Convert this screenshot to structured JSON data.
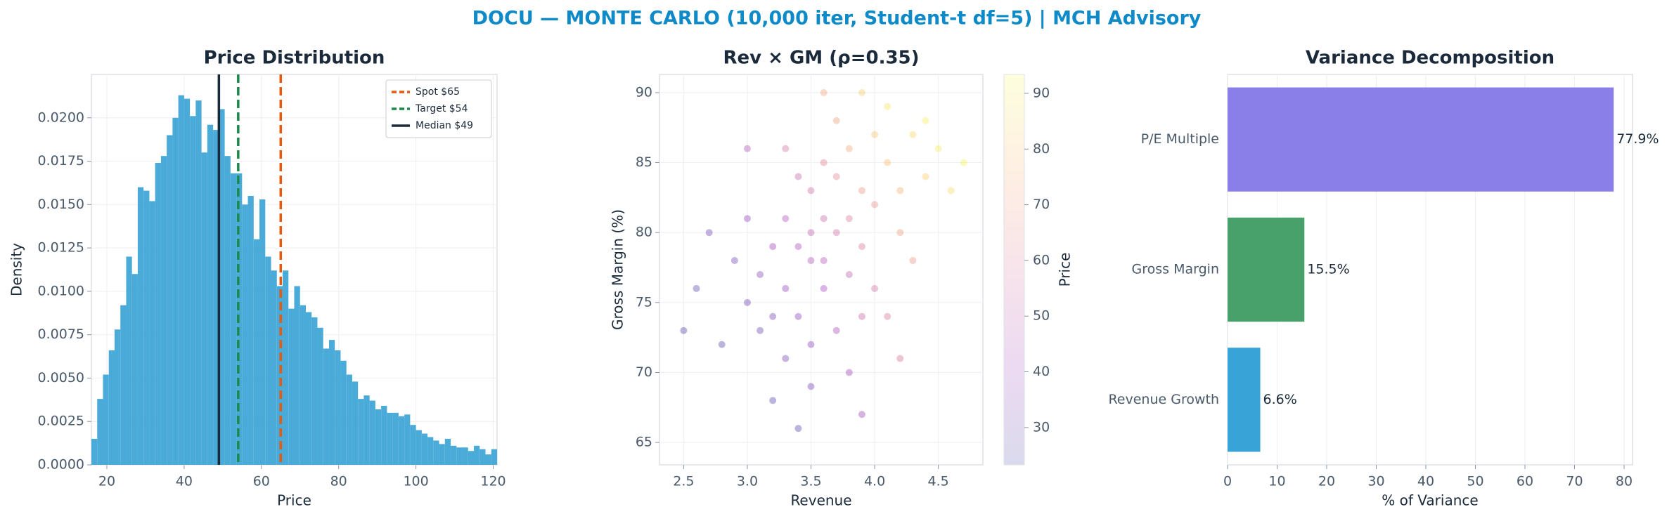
{
  "title": "DOCU — MONTE CARLO (10,000 iter, Student-t df=5) | MCH Advisory",
  "chart_data": [
    {
      "type": "histogram",
      "title": "Price Distribution",
      "xlabel": "Price",
      "ylabel": "Density",
      "color": "#4aaad8",
      "grid": true,
      "legend": "upper right",
      "bins": [
        16,
        17.5,
        19,
        20.5,
        22,
        23.5,
        25,
        26.5,
        28,
        29.5,
        31,
        32.5,
        34,
        35.5,
        37,
        38.5,
        40,
        41.5,
        43,
        44.5,
        46,
        47.5,
        49,
        50.5,
        52,
        53.5,
        55,
        56.5,
        58,
        59.5,
        61,
        62.5,
        64,
        65.5,
        67,
        68.5,
        70,
        71.5,
        73,
        74.5,
        76,
        77.5,
        79,
        80.5,
        82,
        83.5,
        85,
        86.5,
        88,
        89.5,
        91,
        92.5,
        94,
        95.5,
        97,
        98.5,
        100,
        101.5,
        103,
        104.5,
        106,
        107.5,
        109,
        110.5,
        112,
        113.5,
        115,
        116.5,
        118,
        119.5,
        121
      ],
      "values": [
        0.0015,
        0.0038,
        0.0052,
        0.0066,
        0.0078,
        0.0092,
        0.012,
        0.011,
        0.016,
        0.0158,
        0.0152,
        0.0174,
        0.0178,
        0.019,
        0.02,
        0.0213,
        0.0211,
        0.0201,
        0.021,
        0.018,
        0.0196,
        0.0193,
        0.0205,
        0.0178,
        0.0168,
        0.0168,
        0.015,
        0.0155,
        0.013,
        0.0153,
        0.012,
        0.0112,
        0.0103,
        0.0112,
        0.009,
        0.0103,
        0.0092,
        0.0088,
        0.0085,
        0.0079,
        0.0067,
        0.0072,
        0.0066,
        0.006,
        0.0052,
        0.0048,
        0.0038,
        0.004,
        0.0037,
        0.0032,
        0.0034,
        0.003,
        0.003,
        0.0028,
        0.0029,
        0.0023,
        0.002,
        0.0018,
        0.0016,
        0.0014,
        0.0012,
        0.0015,
        0.0011,
        0.001,
        0.001,
        0.0008,
        0.0011,
        0.0009,
        0.0006,
        0.0009
      ],
      "xlim": [
        16,
        121
      ],
      "xticks": [
        20,
        40,
        60,
        80,
        100,
        120
      ],
      "ylim": [
        0,
        0.0225
      ],
      "yticks": [
        {
          "value": 0,
          "label": "0.0000"
        },
        0.0025,
        {
          "value": 0.005,
          "label": "0.0050"
        },
        0.0075,
        {
          "value": 0.01,
          "label": "0.0100"
        },
        0.0125,
        {
          "value": 0.015,
          "label": "0.0150"
        },
        0.0175,
        {
          "value": 0.02,
          "label": "0.0200"
        }
      ],
      "lines": [
        {
          "name": "Spot $65",
          "value": 65,
          "color": "#e8590c",
          "dashed": true
        },
        {
          "name": "Target $54",
          "value": 54,
          "color": "#1a8a4a",
          "dashed": true
        },
        {
          "name": "Median $49",
          "value": 49,
          "color": "#1b2a3a",
          "dashed": false
        }
      ]
    },
    {
      "type": "scatter",
      "title": "Rev × GM (ρ=0.35)",
      "xlabel": "Revenue",
      "ylabel": "Gross Margin (%)",
      "grid": true,
      "colormap": "plasma",
      "alpha": 0.3,
      "x": [
        3.5,
        3.7,
        3.3,
        3.9,
        4.1,
        3.2,
        3.6,
        3.4,
        3.8,
        4.0,
        3.1,
        3.5,
        3.7,
        4.3,
        3.0,
        3.6,
        3.9,
        3.3,
        4.2,
        3.5,
        2.8,
        3.4,
        3.8,
        4.4,
        3.2,
        3.6,
        4.0,
        3.7,
        2.9,
        3.5,
        4.1,
        3.3,
        3.9,
        3.6,
        4.5,
        3.0,
        3.8,
        3.4,
        4.2,
        3.1,
        3.7,
        4.0,
        2.6,
        3.5,
        3.9,
        4.6,
        3.2,
        3.8,
        4.3,
        3.3,
        2.7,
        4.1,
        3.6,
        2.5,
        4.4,
        3.4,
        3.9,
        4.7,
        3.0,
        4.2
      ],
      "y": [
        78,
        80,
        76,
        83,
        85,
        74,
        81,
        79,
        77,
        82,
        77,
        72,
        84,
        87,
        75,
        76,
        79,
        81,
        80,
        83,
        72,
        74,
        86,
        84,
        79,
        78,
        76,
        88,
        78,
        69,
        89,
        71,
        74,
        85,
        86,
        81,
        81,
        84,
        83,
        73,
        73,
        87,
        76,
        80,
        90,
        83,
        68,
        70,
        78,
        86,
        80,
        74,
        90,
        73,
        88,
        66,
        67,
        85,
        86,
        71
      ],
      "c": [
        45,
        55,
        38,
        68,
        78,
        33,
        52,
        44,
        50,
        66,
        35,
        36,
        63,
        85,
        30,
        42,
        58,
        46,
        70,
        55,
        27,
        37,
        72,
        82,
        40,
        47,
        56,
        70,
        32,
        31,
        88,
        32,
        52,
        62,
        90,
        38,
        60,
        52,
        76,
        30,
        44,
        80,
        28,
        50,
        82,
        86,
        27,
        40,
        68,
        56,
        30,
        58,
        72,
        25,
        90,
        27,
        40,
        92,
        46,
        56
      ],
      "xlim": [
        2.31,
        4.85
      ],
      "xticks": [
        2.5,
        {
          "value": 3,
          "label": "3.0"
        },
        3.5,
        {
          "value": 4,
          "label": "4.0"
        },
        4.5
      ],
      "ylim": [
        63.4,
        91.3
      ],
      "yticks": [
        65,
        70,
        75,
        80,
        85,
        90
      ],
      "colorbar": {
        "label": "Price",
        "lim": [
          23.3,
          93.4
        ],
        "ticks": [
          30,
          40,
          50,
          60,
          70,
          80,
          90
        ]
      }
    },
    {
      "type": "bar",
      "orientation": "horizontal",
      "title": "Variance Decomposition",
      "xlabel": "% of Variance",
      "grid": true,
      "categories": [
        "P/E Multiple",
        "Gross Margin",
        "Revenue Growth"
      ],
      "values": [
        77.9,
        15.5,
        6.6
      ],
      "value_labels": [
        "77.9%",
        "15.5%",
        "6.6%"
      ],
      "colors": [
        "#8a7fe8",
        "#48a06a",
        "#38a3d6"
      ],
      "xlim": [
        0,
        81.7
      ],
      "xticks": [
        0,
        10,
        20,
        30,
        40,
        50,
        60,
        70,
        80
      ]
    }
  ]
}
